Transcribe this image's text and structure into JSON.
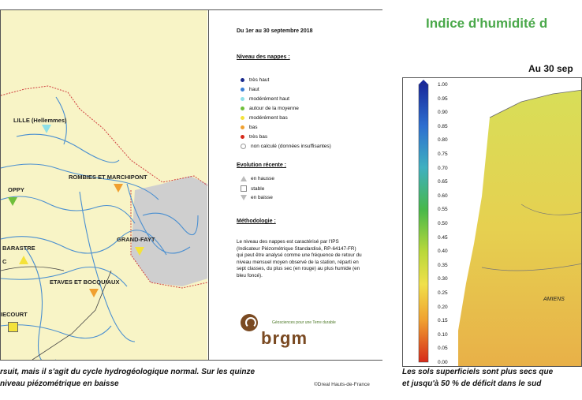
{
  "left_map": {
    "stations": [
      {
        "name": "LILLE (Hellemmes)",
        "level": "modérément haut",
        "trend": "en baisse"
      },
      {
        "name": "OPPY",
        "level": "autour de la moyenne",
        "trend": "en baisse"
      },
      {
        "name": "ROMBIES ET MARCHIPONT",
        "level": "bas",
        "trend": "en baisse"
      },
      {
        "name": "GRAND-FAYT",
        "level": "modérément bas",
        "trend": "en baisse"
      },
      {
        "name": "BARASTRE",
        "level": "modérément bas",
        "trend": "en hausse"
      },
      {
        "name": "C",
        "level": "modérément bas",
        "trend": "en hausse"
      },
      {
        "name": "ETAVES ET BOCQUIAUX",
        "level": "bas",
        "trend": "en baisse"
      },
      {
        "name": "IECOURT",
        "level": "modérément bas",
        "trend": "stable"
      }
    ]
  },
  "legend": {
    "period": "Du 1er au 30 septembre 2018",
    "levels_title": "Niveau des nappes :",
    "levels": [
      {
        "label": "très haut",
        "color": "#1a2a8c"
      },
      {
        "label": "haut",
        "color": "#3a7fd6"
      },
      {
        "label": "modérément haut",
        "color": "#8ee0e8"
      },
      {
        "label": "autour de la moyenne",
        "color": "#6fbf3a"
      },
      {
        "label": "modérément bas",
        "color": "#f4e23a"
      },
      {
        "label": "bas",
        "color": "#f0a030"
      },
      {
        "label": "très bas",
        "color": "#d62a1a"
      },
      {
        "label": "non calculé (données insuffisantes)",
        "color": "#ffffff"
      }
    ],
    "trend_title": "Evolution récente :",
    "trends": [
      {
        "label": "en hausse",
        "icon": "triangle-up-icon"
      },
      {
        "label": "stable",
        "icon": "square-icon"
      },
      {
        "label": "en baisse",
        "icon": "triangle-down-icon"
      }
    ],
    "method_title": "Méthodologie :",
    "method_text": "Le niveau des nappes est caractérisé par l'IPS (Indicateur Piézométrique Standardisé, RP-64147-FR) qui peut être analysé comme une fréquence de retour du niveau mensuel moyen observé de la station, réparti en sept classes, du plus sec (en rouge) au plus humide (en bleu foncé).",
    "logo_text": "brgm",
    "logo_tagline": "Géosciences pour une Terre durable"
  },
  "left_caption": {
    "line1": "rsuit, mais il s'agit du cycle hydrogéologique normal. Sur les quinze",
    "line2": "niveau piézométrique en baisse",
    "credit": "©Dreal Hauts-de-France"
  },
  "right_panel": {
    "title": "Indice d'humidité d",
    "subtitle": "Au 30 sep",
    "scale_ticks": [
      "1.00",
      "0.95",
      "0.90",
      "0.85",
      "0.80",
      "0.75",
      "0.70",
      "0.65",
      "0.60",
      "0.55",
      "0.50",
      "0.45",
      "0.40",
      "0.35",
      "0.30",
      "0.25",
      "0.20",
      "0.15",
      "0.10",
      "0.05",
      "0.00"
    ],
    "town": "AMIENS",
    "caption1": "Les sols superficiels sont plus secs que",
    "caption2": "et jusqu'à 50 % de déficit dans le sud"
  }
}
